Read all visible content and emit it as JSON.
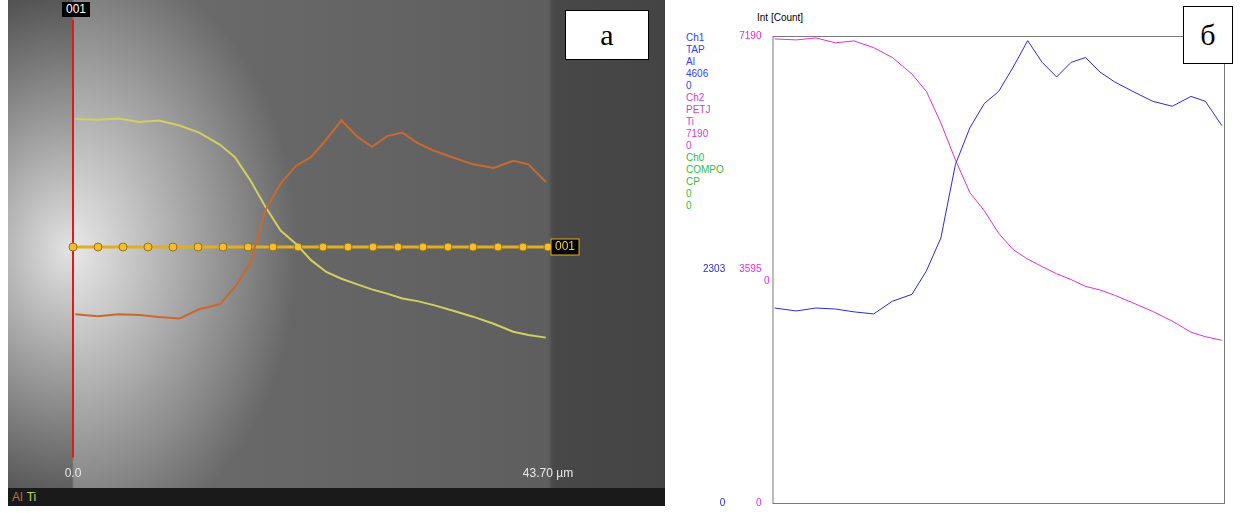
{
  "chart_data": [
    {
      "type": "line",
      "panel_label": "а",
      "title": "001",
      "annotations": [
        {
          "text": "001"
        }
      ],
      "x": [
        0.2,
        2.3,
        4.2,
        6.1,
        7.9,
        9.8,
        11.6,
        13.5,
        14.9,
        16.3,
        17.7,
        19.1,
        20.5,
        21.9,
        23.3,
        24.7,
        26.1,
        27.5,
        28.9,
        30.3,
        31.7,
        33.1,
        34.9,
        36.8,
        38.7,
        40.5,
        41.9,
        43.5
      ],
      "series": [
        {
          "name": "Al",
          "color": "#c86a30",
          "values": [
            1923,
            1894,
            1923,
            1913,
            1885,
            1865,
            1990,
            2058,
            2290,
            2615,
            3337,
            3700,
            3940,
            4060,
            4300,
            4560,
            4346,
            4202,
            4346,
            4394,
            4250,
            4154,
            4058,
            3962,
            3913,
            4010,
            3962,
            3721
          ]
        },
        {
          "name": "Ti",
          "color": "#d0d060",
          "axis": "y2",
          "values": [
            7145,
            7130,
            7160,
            7085,
            7115,
            7010,
            6860,
            6605,
            6335,
            5850,
            5285,
            4780,
            4500,
            4150,
            3900,
            3755,
            3640,
            3530,
            3440,
            3335,
            3280,
            3200,
            3080,
            2950,
            2800,
            2630,
            2560,
            2505
          ]
        }
      ],
      "xlim": [
        0,
        43.7
      ],
      "xticks": [
        {
          "value": 0,
          "label": "0.0"
        },
        {
          "value": 43.7,
          "label": "43.70 µm"
        }
      ],
      "ylim": [
        0,
        4606
      ],
      "y2lim": [
        0,
        7190
      ],
      "tick_labels": "x",
      "grid": false,
      "legend": "bottom"
    },
    {
      "type": "line",
      "panel_label": "б",
      "ylabel": "Int [Count]",
      "channels": [
        {
          "color": "#3a3aff",
          "lines": [
            "Ch1",
            "TAP",
            "Al",
            "4606",
            "0"
          ]
        },
        {
          "color": "#d040d0",
          "lines": [
            "Ch2",
            "PETJ",
            "Ti",
            "7190",
            "0"
          ]
        },
        {
          "color": "#30c030",
          "lines": [
            "Ch0",
            "COMPO",
            "CP",
            "0",
            "0"
          ]
        }
      ],
      "x": [
        0.2,
        2.3,
        4.2,
        6.1,
        7.9,
        9.8,
        11.6,
        13.5,
        14.9,
        16.3,
        17.7,
        19.1,
        20.5,
        21.9,
        23.3,
        24.7,
        26.1,
        27.5,
        28.9,
        30.3,
        31.7,
        33.1,
        34.9,
        36.8,
        38.7,
        40.5,
        41.9,
        43.5
      ],
      "series": [
        {
          "name": "Al",
          "color": "#2a2ae0",
          "values": [
            1923,
            1894,
            1923,
            1913,
            1885,
            1865,
            1990,
            2058,
            2290,
            2615,
            3337,
            3700,
            3940,
            4060,
            4300,
            4560,
            4346,
            4202,
            4346,
            4394,
            4250,
            4154,
            4058,
            3962,
            3913,
            4010,
            3962,
            3721
          ]
        },
        {
          "name": "Ti",
          "color": "#e02ee0",
          "axis": "y2",
          "values": [
            7145,
            7130,
            7160,
            7085,
            7115,
            7010,
            6860,
            6605,
            6335,
            5850,
            5285,
            4780,
            4500,
            4150,
            3900,
            3755,
            3640,
            3530,
            3440,
            3335,
            3280,
            3200,
            3080,
            2950,
            2800,
            2630,
            2560,
            2505
          ]
        }
      ],
      "xlim": [
        0,
        43.7
      ],
      "ylim": [
        0,
        4606
      ],
      "yticks": [
        0,
        2303
      ],
      "y2lim": [
        0,
        7190
      ],
      "y2ticks": [
        0,
        3595,
        7190
      ],
      "annotations": [
        {
          "text": "0",
          "color": "#e02ee0"
        }
      ],
      "tick_labels": "y",
      "grid": false
    }
  ]
}
